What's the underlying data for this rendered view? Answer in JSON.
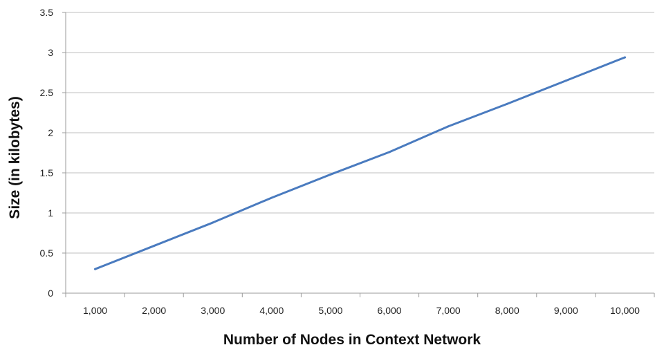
{
  "chart_data": {
    "type": "line",
    "title": "",
    "xlabel": "Number of Nodes in Context Network",
    "ylabel": "Size (in kilobytes)",
    "categories": [
      "1,000",
      "2,000",
      "3,000",
      "4,000",
      "5,000",
      "6,000",
      "7,000",
      "8,000",
      "9,000",
      "10,000"
    ],
    "series": [
      {
        "values": [
          0.3,
          0.59,
          0.88,
          1.19,
          1.48,
          1.76,
          2.08,
          2.36,
          2.65,
          2.94
        ]
      }
    ],
    "ylim": [
      0,
      3.5
    ],
    "yticks": [
      0,
      0.5,
      1,
      1.5,
      2,
      2.5,
      3,
      3.5
    ],
    "grid": true,
    "legend": "none",
    "colors": {
      "line": "#4a7bbf",
      "grid": "#bfbfbf",
      "axis": "#9a9a9a"
    }
  }
}
